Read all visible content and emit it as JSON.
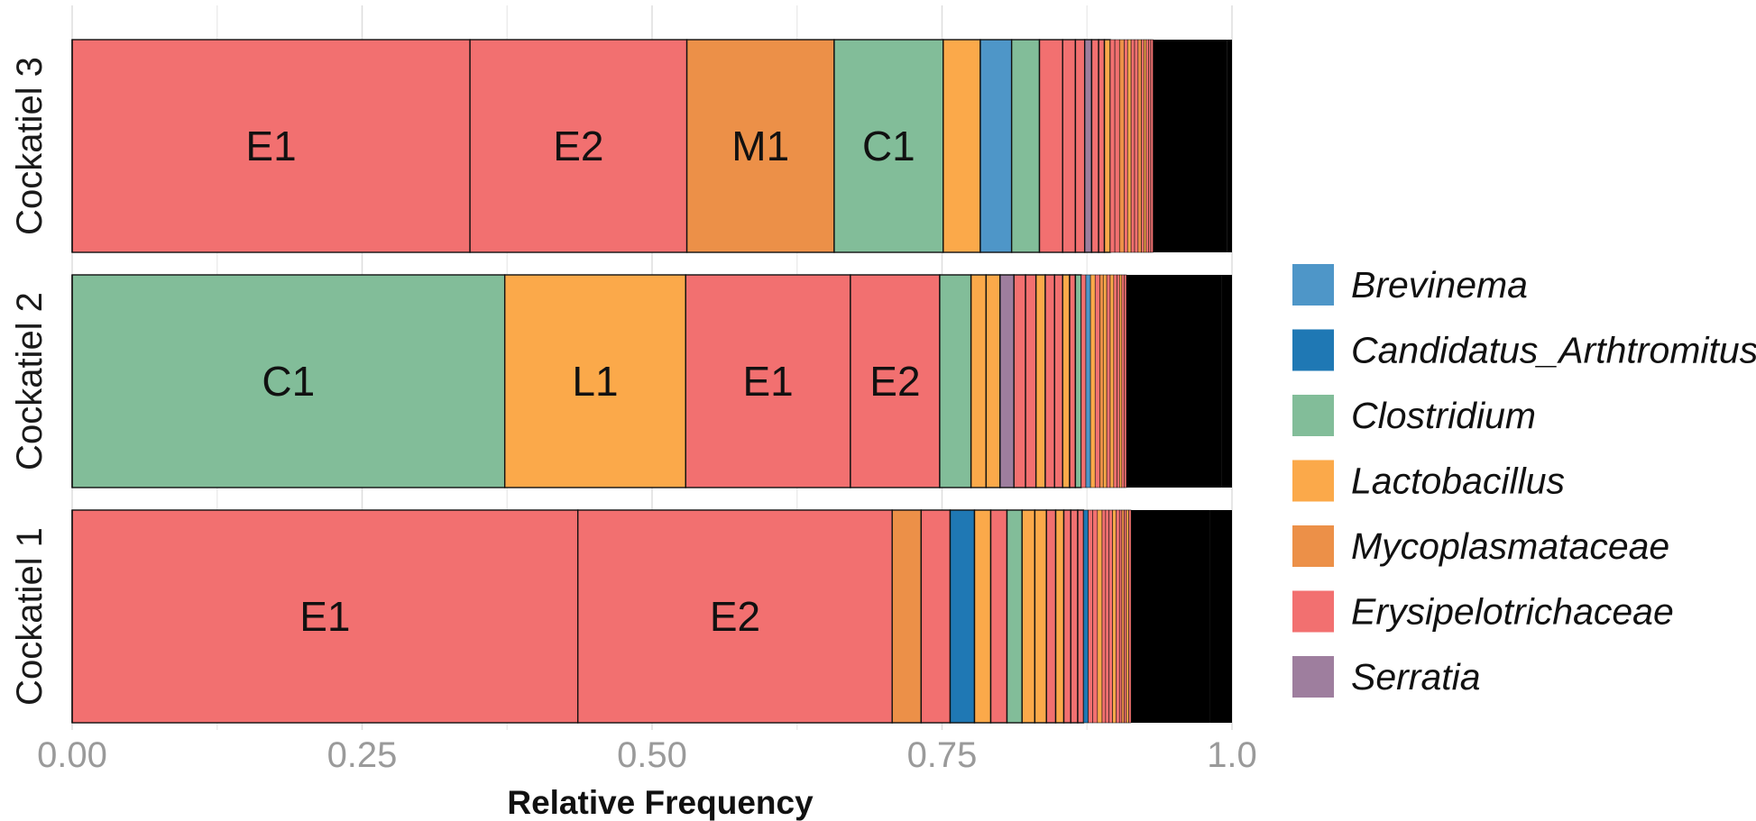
{
  "chart_data": {
    "type": "bar",
    "orientation": "horizontal",
    "stacked": true,
    "xlabel": "Relative Frequency",
    "xlim": [
      0,
      1
    ],
    "x_ticks": [
      "0.00",
      "0.25",
      "0.50",
      "0.75",
      "1.0"
    ],
    "grid": true,
    "legend_position": "right",
    "colors": {
      "Brevinema": "#4e96c8",
      "Candidatus_Arthtromitus": "#1f78b4",
      "Clostridium": "#82bd99",
      "Lactobacillus": "#fba94a",
      "Mycoplasmataceae": "#ec9048",
      "Erysipelotrichaceae": "#f27070",
      "Serratia": "#9e7e9e",
      "Other": "#000000"
    },
    "legend": [
      "Brevinema",
      "Candidatus_Arthtromitus",
      "Clostridium",
      "Lactobacillus",
      "Mycoplasmataceae",
      "Erysipelotrichaceae",
      "Serratia"
    ],
    "samples": [
      {
        "name": "Cockatiel 3",
        "segments": [
          {
            "taxon": "Erysipelotrichaceae",
            "value": 0.343,
            "label": "E1"
          },
          {
            "taxon": "Erysipelotrichaceae",
            "value": 0.187,
            "label": "E2"
          },
          {
            "taxon": "Mycoplasmataceae",
            "value": 0.127,
            "label": "M1"
          },
          {
            "taxon": "Clostridium",
            "value": 0.094,
            "label": "C1"
          },
          {
            "taxon": "Lactobacillus",
            "value": 0.032
          },
          {
            "taxon": "Brevinema",
            "value": 0.027
          },
          {
            "taxon": "Clostridium",
            "value": 0.024
          },
          {
            "taxon": "Erysipelotrichaceae",
            "value": 0.02
          },
          {
            "taxon": "Erysipelotrichaceae",
            "value": 0.011
          },
          {
            "taxon": "Erysipelotrichaceae",
            "value": 0.008
          },
          {
            "taxon": "Serratia",
            "value": 0.006
          },
          {
            "taxon": "Erysipelotrichaceae",
            "value": 0.006
          },
          {
            "taxon": "Erysipelotrichaceae",
            "value": 0.005
          },
          {
            "taxon": "Lactobacillus",
            "value": 0.005
          },
          {
            "taxon": "Erysipelotrichaceae",
            "value": 0.004
          },
          {
            "taxon": "Erysipelotrichaceae",
            "value": 0.004
          },
          {
            "taxon": "Mycoplasmataceae",
            "value": 0.004
          },
          {
            "taxon": "Erysipelotrichaceae",
            "value": 0.003
          },
          {
            "taxon": "Lactobacillus",
            "value": 0.003
          },
          {
            "taxon": "Erysipelotrichaceae",
            "value": 0.003
          },
          {
            "taxon": "Erysipelotrichaceae",
            "value": 0.003
          },
          {
            "taxon": "Mycoplasmataceae",
            "value": 0.003
          },
          {
            "taxon": "Erysipelotrichaceae",
            "value": 0.002
          },
          {
            "taxon": "Lactobacillus",
            "value": 0.002
          },
          {
            "taxon": "Erysipelotrichaceae",
            "value": 0.002
          },
          {
            "taxon": "Erysipelotrichaceae",
            "value": 0.002
          },
          {
            "taxon": "Erysipelotrichaceae",
            "value": 0.002
          },
          {
            "taxon": "Other",
            "value": 0.064
          }
        ]
      },
      {
        "name": "Cockatiel 2",
        "segments": [
          {
            "taxon": "Clostridium",
            "value": 0.373,
            "label": "C1"
          },
          {
            "taxon": "Lactobacillus",
            "value": 0.156,
            "label": "L1"
          },
          {
            "taxon": "Erysipelotrichaceae",
            "value": 0.142,
            "label": "E1"
          },
          {
            "taxon": "Erysipelotrichaceae",
            "value": 0.077,
            "label": "E2"
          },
          {
            "taxon": "Clostridium",
            "value": 0.027
          },
          {
            "taxon": "Lactobacillus",
            "value": 0.013
          },
          {
            "taxon": "Lactobacillus",
            "value": 0.012
          },
          {
            "taxon": "Serratia",
            "value": 0.012
          },
          {
            "taxon": "Erysipelotrichaceae",
            "value": 0.01
          },
          {
            "taxon": "Erysipelotrichaceae",
            "value": 0.009
          },
          {
            "taxon": "Lactobacillus",
            "value": 0.008
          },
          {
            "taxon": "Erysipelotrichaceae",
            "value": 0.008
          },
          {
            "taxon": "Erysipelotrichaceae",
            "value": 0.007
          },
          {
            "taxon": "Lactobacillus",
            "value": 0.006
          },
          {
            "taxon": "Erysipelotrichaceae",
            "value": 0.005
          },
          {
            "taxon": "Clostridium",
            "value": 0.005
          },
          {
            "taxon": "Erysipelotrichaceae",
            "value": 0.004
          },
          {
            "taxon": "Brevinema",
            "value": 0.004
          },
          {
            "taxon": "Lactobacillus",
            "value": 0.004
          },
          {
            "taxon": "Erysipelotrichaceae",
            "value": 0.004
          },
          {
            "taxon": "Mycoplasmataceae",
            "value": 0.003
          },
          {
            "taxon": "Lactobacillus",
            "value": 0.003
          },
          {
            "taxon": "Erysipelotrichaceae",
            "value": 0.003
          },
          {
            "taxon": "Lactobacillus",
            "value": 0.003
          },
          {
            "taxon": "Erysipelotrichaceae",
            "value": 0.003
          },
          {
            "taxon": "Erysipelotrichaceae",
            "value": 0.002
          },
          {
            "taxon": "Lactobacillus",
            "value": 0.002
          },
          {
            "taxon": "Erysipelotrichaceae",
            "value": 0.002
          },
          {
            "taxon": "Erysipelotrichaceae",
            "value": 0.002
          },
          {
            "taxon": "Other",
            "value": 0.082
          }
        ]
      },
      {
        "name": "Cockatiel 1",
        "segments": [
          {
            "taxon": "Erysipelotrichaceae",
            "value": 0.436,
            "label": "E1"
          },
          {
            "taxon": "Erysipelotrichaceae",
            "value": 0.271,
            "label": "E2"
          },
          {
            "taxon": "Mycoplasmataceae",
            "value": 0.025
          },
          {
            "taxon": "Erysipelotrichaceae",
            "value": 0.025
          },
          {
            "taxon": "Candidatus_Arthtromitus",
            "value": 0.021
          },
          {
            "taxon": "Lactobacillus",
            "value": 0.014
          },
          {
            "taxon": "Erysipelotrichaceae",
            "value": 0.014
          },
          {
            "taxon": "Clostridium",
            "value": 0.013
          },
          {
            "taxon": "Lactobacillus",
            "value": 0.011
          },
          {
            "taxon": "Lactobacillus",
            "value": 0.01
          },
          {
            "taxon": "Erysipelotrichaceae",
            "value": 0.008
          },
          {
            "taxon": "Lactobacillus",
            "value": 0.007
          },
          {
            "taxon": "Erysipelotrichaceae",
            "value": 0.006
          },
          {
            "taxon": "Erysipelotrichaceae",
            "value": 0.006
          },
          {
            "taxon": "Erysipelotrichaceae",
            "value": 0.005
          },
          {
            "taxon": "Candidatus_Arthtromitus",
            "value": 0.004
          },
          {
            "taxon": "Erysipelotrichaceae",
            "value": 0.004
          },
          {
            "taxon": "Erysipelotrichaceae",
            "value": 0.004
          },
          {
            "taxon": "Lactobacillus",
            "value": 0.004
          },
          {
            "taxon": "Erysipelotrichaceae",
            "value": 0.003
          },
          {
            "taxon": "Erysipelotrichaceae",
            "value": 0.003
          },
          {
            "taxon": "Erysipelotrichaceae",
            "value": 0.003
          },
          {
            "taxon": "Lactobacillus",
            "value": 0.003
          },
          {
            "taxon": "Erysipelotrichaceae",
            "value": 0.003
          },
          {
            "taxon": "Erysipelotrichaceae",
            "value": 0.002
          },
          {
            "taxon": "Mycoplasmataceae",
            "value": 0.002
          },
          {
            "taxon": "Erysipelotrichaceae",
            "value": 0.002
          },
          {
            "taxon": "Lactobacillus",
            "value": 0.002
          },
          {
            "taxon": "Erysipelotrichaceae",
            "value": 0.002
          },
          {
            "taxon": "Other",
            "value": 0.068
          }
        ]
      }
    ]
  }
}
